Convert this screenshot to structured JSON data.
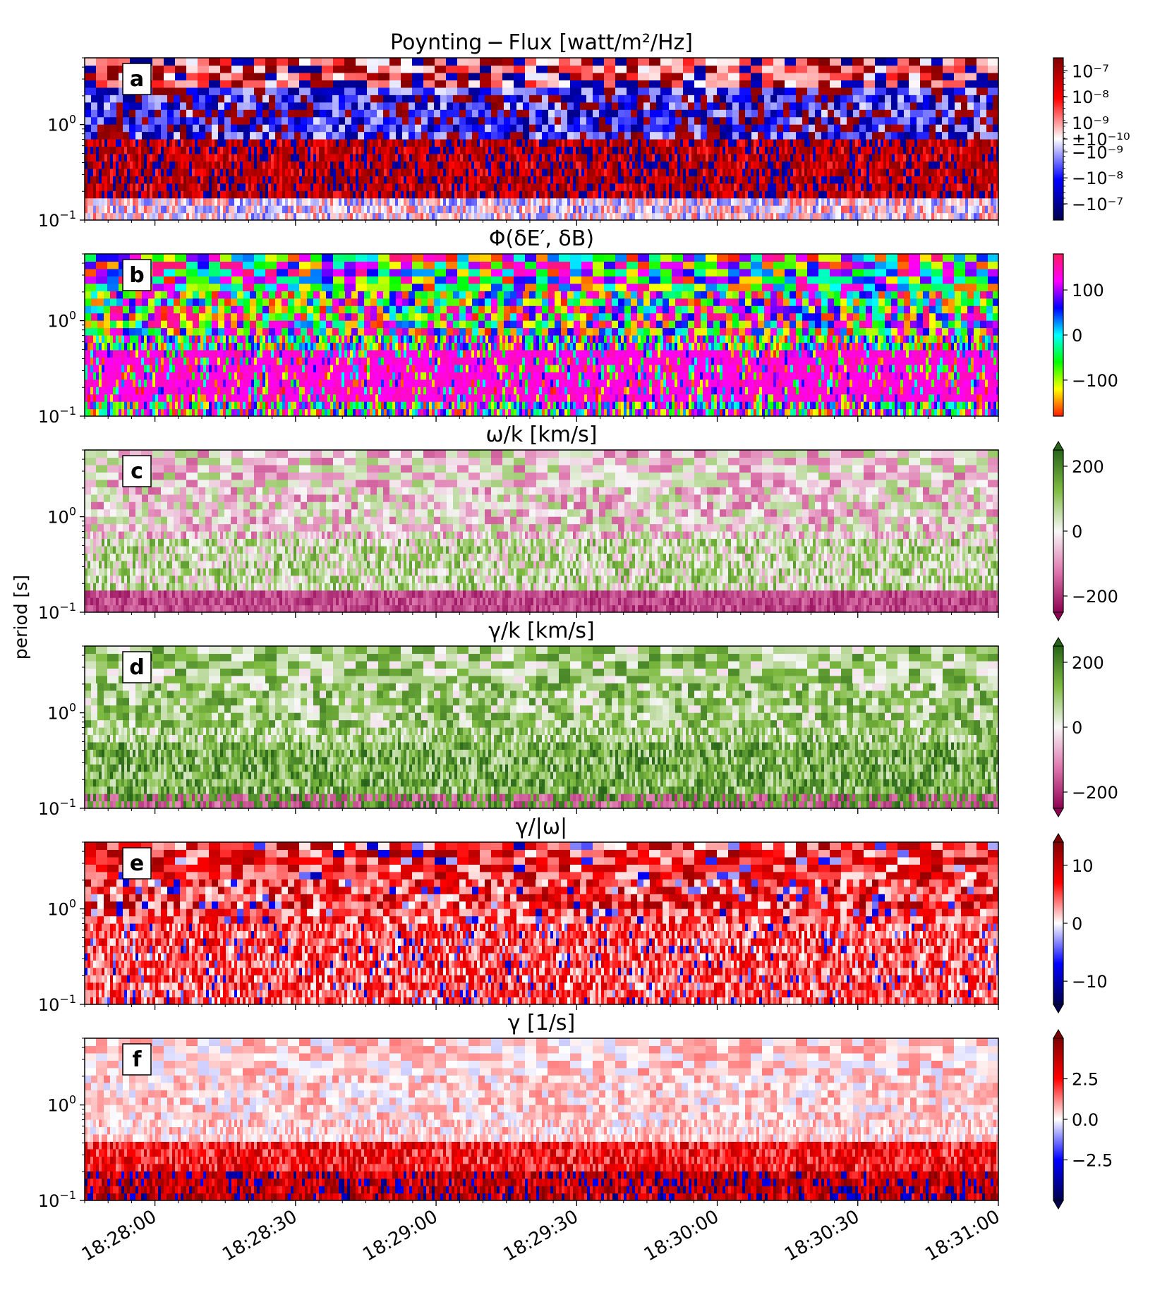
{
  "figure": {
    "ylabel": "period [s]",
    "x_ticks": [
      "18:28:00",
      "18:28:30",
      "18:29:00",
      "18:29:30",
      "18:30:00",
      "18:30:30",
      "18:31:00"
    ],
    "y_ticks": [
      "10",
      "10"
    ],
    "y_tick_exponents": [
      "0",
      "−1"
    ]
  },
  "chart_data": [
    {
      "type": "heatmap",
      "panel": "a",
      "title": "Poynting − Flux  [watt/m²/Hz]",
      "colormap": "seismic-symlog",
      "colors": [
        "#00004c",
        "#0000ff",
        "#ffffff",
        "#ff0000",
        "#7f0000"
      ],
      "colorbar_ticks": [
        "10⁻⁷",
        "10⁻⁸",
        "10⁻⁹",
        "±10⁻¹⁰",
        "−10⁻⁹",
        "−10⁻⁸",
        "−10⁻⁷"
      ],
      "x_range": [
        "18:27:45",
        "18:31:00"
      ],
      "y_range": [
        0.1,
        5
      ],
      "y_scale": "log"
    },
    {
      "type": "heatmap",
      "panel": "b",
      "title": "Φ(δE′, δB)",
      "colormap": "hsv",
      "colors": [
        "#ff1a00",
        "#ffff00",
        "#00ff00",
        "#00ffff",
        "#0000ff",
        "#ff00ff",
        "#ff1a60"
      ],
      "colorbar_ticks": [
        "100",
        "0",
        "−100"
      ],
      "vlim": [
        -180,
        180
      ],
      "x_range": [
        "18:27:45",
        "18:31:00"
      ],
      "y_range": [
        0.1,
        5
      ],
      "y_scale": "log"
    },
    {
      "type": "heatmap",
      "panel": "c",
      "title": "ω/k  [km/s]",
      "colormap": "PiYG",
      "colors": [
        "#8e0152",
        "#de77ae",
        "#f7f7f7",
        "#7fbc41",
        "#276419"
      ],
      "colorbar_ticks": [
        "200",
        "0",
        "−200"
      ],
      "vlim": [
        -250,
        250
      ],
      "x_range": [
        "18:27:45",
        "18:31:00"
      ],
      "y_range": [
        0.1,
        5
      ],
      "y_scale": "log"
    },
    {
      "type": "heatmap",
      "panel": "d",
      "title": "γ/k  [km/s]",
      "colormap": "PiYG",
      "colors": [
        "#8e0152",
        "#de77ae",
        "#f7f7f7",
        "#7fbc41",
        "#276419"
      ],
      "colorbar_ticks": [
        "200",
        "0",
        "−200"
      ],
      "vlim": [
        -250,
        250
      ],
      "x_range": [
        "18:27:45",
        "18:31:00"
      ],
      "y_range": [
        0.1,
        5
      ],
      "y_scale": "log"
    },
    {
      "type": "heatmap",
      "panel": "e",
      "title": "γ/|ω|",
      "colormap": "seismic",
      "colors": [
        "#00004c",
        "#0000ff",
        "#ffffff",
        "#ff0000",
        "#7f0000"
      ],
      "colorbar_ticks": [
        "10",
        "0",
        "−10"
      ],
      "vlim": [
        -14,
        14
      ],
      "x_range": [
        "18:27:45",
        "18:31:00"
      ],
      "y_range": [
        0.1,
        5
      ],
      "y_scale": "log"
    },
    {
      "type": "heatmap",
      "panel": "f",
      "title": "γ  [1/s]",
      "colormap": "seismic",
      "colors": [
        "#00004c",
        "#0000ff",
        "#ffffff",
        "#ff0000",
        "#7f0000"
      ],
      "colorbar_ticks": [
        "2.5",
        "0.0",
        "−2.5"
      ],
      "vlim": [
        -5,
        5
      ],
      "x_range": [
        "18:27:45",
        "18:31:00"
      ],
      "y_range": [
        0.1,
        5
      ],
      "y_scale": "log"
    }
  ]
}
